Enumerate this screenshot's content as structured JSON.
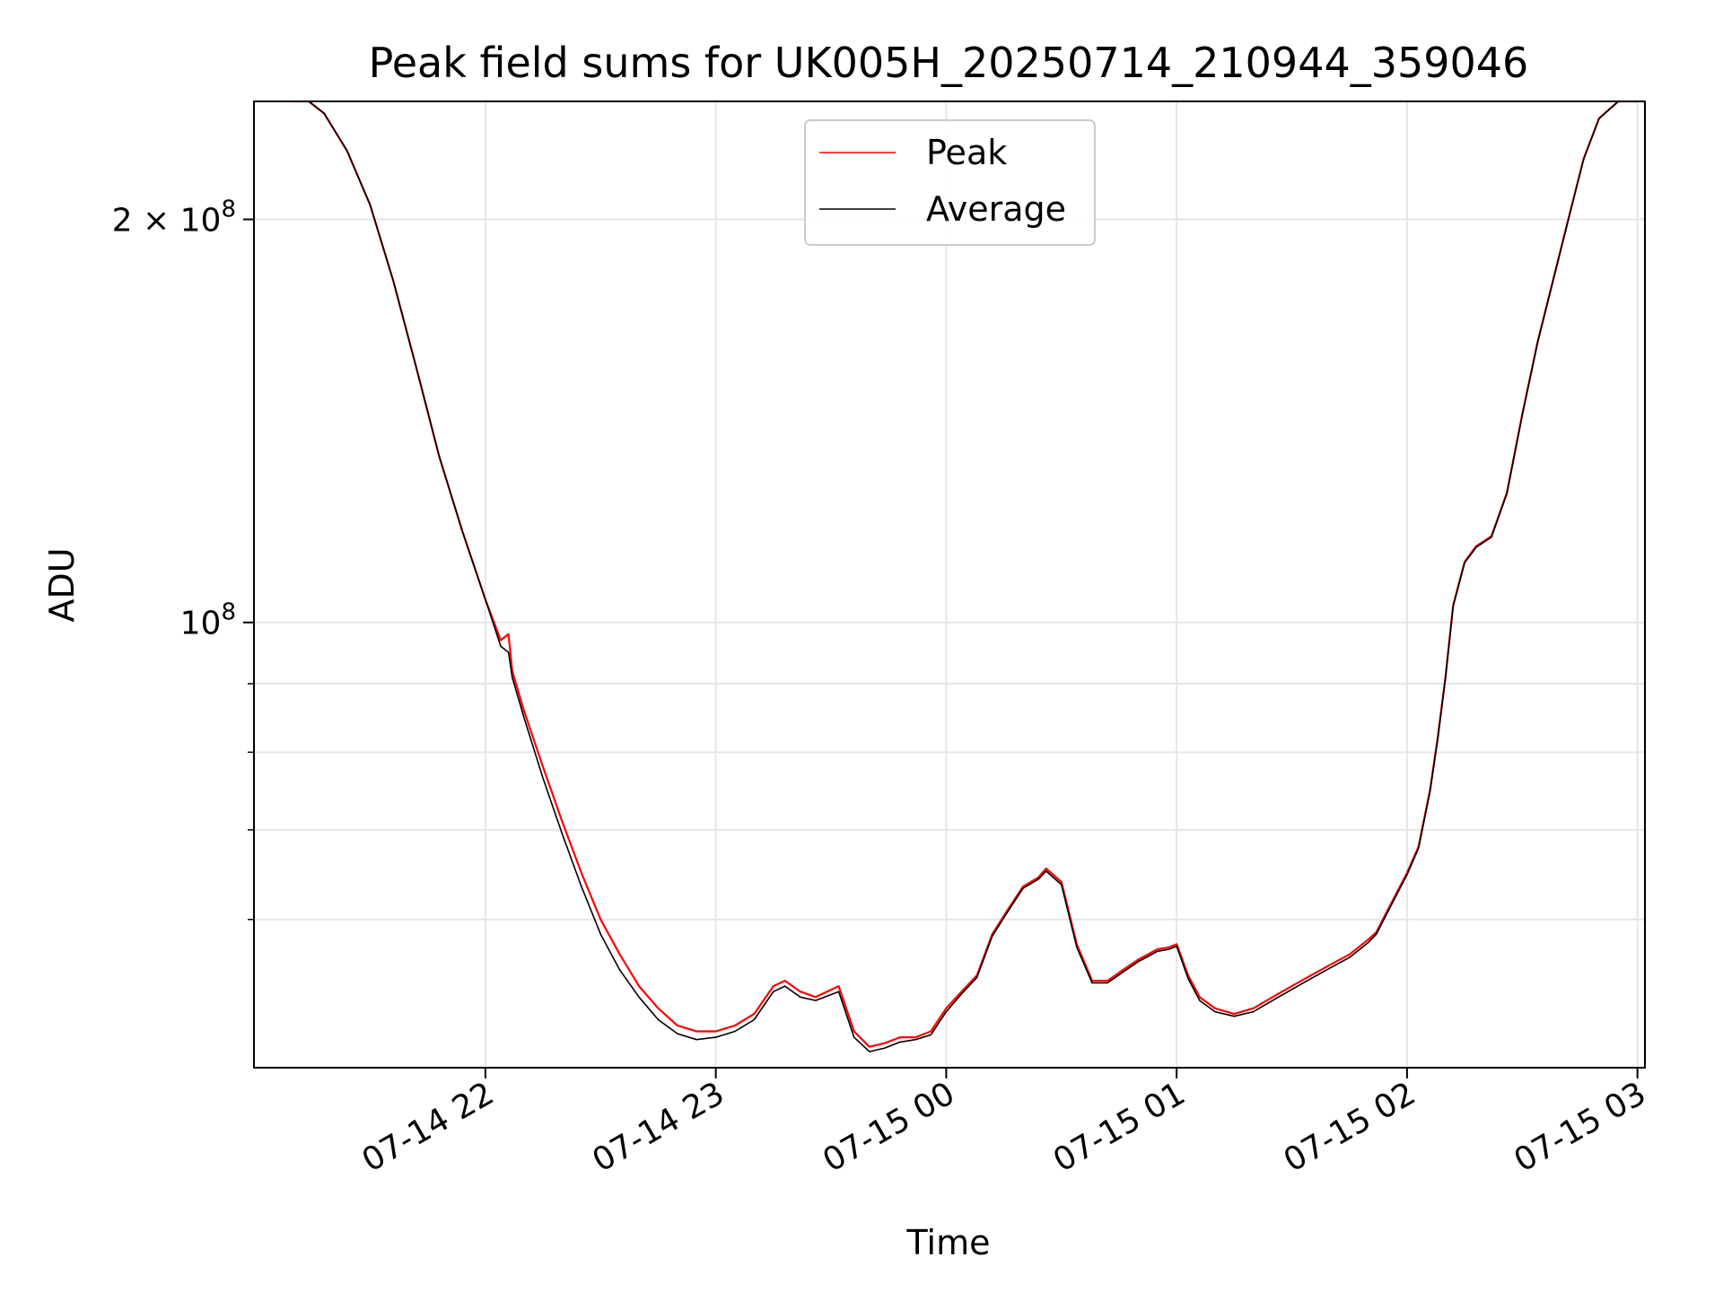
{
  "chart_data": {
    "type": "line",
    "title": "Peak field sums for UK005H_20250714_210944_359046",
    "xlabel": "Time",
    "ylabel": "ADU",
    "y_scale": "log",
    "ylim": [
      46500000,
      245000000
    ],
    "xlim": [
      "2025-07-14 21:09:44",
      "2025-07-15 03:00:00"
    ],
    "grid": true,
    "legend_position": "upper center",
    "x_ticks": [
      {
        "value": "2025-07-14 22:00",
        "label": "07-14 22"
      },
      {
        "value": "2025-07-14 23:00",
        "label": "07-14 23"
      },
      {
        "value": "2025-07-15 00:00",
        "label": "07-15 00"
      },
      {
        "value": "2025-07-15 01:00",
        "label": "07-15 01"
      },
      {
        "value": "2025-07-15 02:00",
        "label": "07-15 02"
      },
      {
        "value": "2025-07-15 03:00",
        "label": "07-15 03"
      }
    ],
    "y_ticks_major": [
      {
        "value": 100000000,
        "base": "10",
        "exp": "8",
        "mantissa": ""
      },
      {
        "value": 200000000,
        "base": "10",
        "exp": "8",
        "mantissa": "2 × "
      }
    ],
    "y_ticks_minor": [
      60000000,
      70000000,
      80000000,
      90000000
    ],
    "series": [
      {
        "name": "Peak",
        "color": "#ff0000",
        "x": [
          "2025-07-14 21:09:44",
          "2025-07-14 21:14",
          "2025-07-14 21:18",
          "2025-07-14 21:24",
          "2025-07-14 21:30",
          "2025-07-14 21:36",
          "2025-07-14 21:42",
          "2025-07-14 21:48",
          "2025-07-14 21:54",
          "2025-07-14 22:00",
          "2025-07-14 22:04",
          "2025-07-14 22:06",
          "2025-07-14 22:07",
          "2025-07-14 22:10",
          "2025-07-14 22:15",
          "2025-07-14 22:20",
          "2025-07-14 22:25",
          "2025-07-14 22:30",
          "2025-07-14 22:35",
          "2025-07-14 22:40",
          "2025-07-14 22:45",
          "2025-07-14 22:50",
          "2025-07-14 22:55",
          "2025-07-14 23:00",
          "2025-07-14 23:05",
          "2025-07-14 23:10",
          "2025-07-14 23:15",
          "2025-07-14 23:18",
          "2025-07-14 23:22",
          "2025-07-14 23:26",
          "2025-07-14 23:32",
          "2025-07-14 23:36",
          "2025-07-14 23:40",
          "2025-07-14 23:44",
          "2025-07-14 23:48",
          "2025-07-14 23:52",
          "2025-07-14 23:56",
          "2025-07-15 00:00",
          "2025-07-15 00:04",
          "2025-07-15 00:08",
          "2025-07-15 00:12",
          "2025-07-15 00:16",
          "2025-07-15 00:20",
          "2025-07-15 00:24",
          "2025-07-15 00:26",
          "2025-07-15 00:30",
          "2025-07-15 00:34",
          "2025-07-15 00:38",
          "2025-07-15 00:42",
          "2025-07-15 00:46",
          "2025-07-15 00:50",
          "2025-07-15 00:55",
          "2025-07-15 00:58",
          "2025-07-15 01:00",
          "2025-07-15 01:03",
          "2025-07-15 01:06",
          "2025-07-15 01:10",
          "2025-07-15 01:15",
          "2025-07-15 01:20",
          "2025-07-15 01:25",
          "2025-07-15 01:30",
          "2025-07-15 01:35",
          "2025-07-15 01:40",
          "2025-07-15 01:45",
          "2025-07-15 01:50",
          "2025-07-15 01:52",
          "2025-07-15 01:55",
          "2025-07-15 02:00",
          "2025-07-15 02:03",
          "2025-07-15 02:06",
          "2025-07-15 02:08",
          "2025-07-15 02:10",
          "2025-07-15 02:12",
          "2025-07-15 02:15",
          "2025-07-15 02:18",
          "2025-07-15 02:22",
          "2025-07-15 02:26",
          "2025-07-15 02:30",
          "2025-07-15 02:34",
          "2025-07-15 02:38",
          "2025-07-15 02:42",
          "2025-07-15 02:46",
          "2025-07-15 02:50",
          "2025-07-15 02:55",
          "2025-07-15 03:00"
        ],
        "y": [
          245000000,
          245000000,
          240000000,
          225000000,
          205000000,
          180000000,
          155000000,
          133000000,
          117000000,
          104000000,
          97000000,
          98000000,
          92000000,
          86000000,
          78000000,
          71000000,
          65000000,
          60000000,
          56500000,
          53500000,
          51500000,
          50000000,
          49500000,
          49500000,
          50000000,
          51000000,
          53500000,
          54000000,
          53000000,
          52500000,
          53500000,
          49500000,
          48200000,
          48500000,
          49000000,
          49000000,
          49500000,
          51500000,
          53000000,
          54500000,
          58500000,
          61000000,
          63500000,
          64500000,
          65500000,
          64000000,
          57500000,
          54000000,
          54000000,
          55000000,
          56000000,
          57000000,
          57200000,
          57500000,
          54500000,
          52500000,
          51500000,
          51000000,
          51500000,
          52500000,
          53500000,
          54500000,
          55500000,
          56500000,
          58000000,
          58700000,
          61000000,
          65000000,
          68000000,
          75000000,
          82000000,
          91000000,
          103000000,
          111000000,
          114000000,
          116000000,
          125000000,
          143000000,
          162000000,
          180000000,
          200000000,
          222000000,
          238000000,
          245000000,
          245000000
        ]
      },
      {
        "name": "Average",
        "color": "#000000",
        "x": [
          "2025-07-14 21:09:44",
          "2025-07-14 21:14",
          "2025-07-14 21:18",
          "2025-07-14 21:24",
          "2025-07-14 21:30",
          "2025-07-14 21:36",
          "2025-07-14 21:42",
          "2025-07-14 21:48",
          "2025-07-14 21:54",
          "2025-07-14 22:00",
          "2025-07-14 22:04",
          "2025-07-14 22:06",
          "2025-07-14 22:07",
          "2025-07-14 22:10",
          "2025-07-14 22:15",
          "2025-07-14 22:20",
          "2025-07-14 22:25",
          "2025-07-14 22:30",
          "2025-07-14 22:35",
          "2025-07-14 22:40",
          "2025-07-14 22:45",
          "2025-07-14 22:50",
          "2025-07-14 22:55",
          "2025-07-14 23:00",
          "2025-07-14 23:05",
          "2025-07-14 23:10",
          "2025-07-14 23:15",
          "2025-07-14 23:18",
          "2025-07-14 23:22",
          "2025-07-14 23:26",
          "2025-07-14 23:32",
          "2025-07-14 23:36",
          "2025-07-14 23:40",
          "2025-07-14 23:44",
          "2025-07-14 23:48",
          "2025-07-14 23:52",
          "2025-07-14 23:56",
          "2025-07-15 00:00",
          "2025-07-15 00:04",
          "2025-07-15 00:08",
          "2025-07-15 00:12",
          "2025-07-15 00:16",
          "2025-07-15 00:20",
          "2025-07-15 00:24",
          "2025-07-15 00:26",
          "2025-07-15 00:30",
          "2025-07-15 00:34",
          "2025-07-15 00:38",
          "2025-07-15 00:42",
          "2025-07-15 00:46",
          "2025-07-15 00:50",
          "2025-07-15 00:55",
          "2025-07-15 00:58",
          "2025-07-15 01:00",
          "2025-07-15 01:03",
          "2025-07-15 01:06",
          "2025-07-15 01:10",
          "2025-07-15 01:15",
          "2025-07-15 01:20",
          "2025-07-15 01:25",
          "2025-07-15 01:30",
          "2025-07-15 01:35",
          "2025-07-15 01:40",
          "2025-07-15 01:45",
          "2025-07-15 01:50",
          "2025-07-15 01:52",
          "2025-07-15 01:55",
          "2025-07-15 02:00",
          "2025-07-15 02:03",
          "2025-07-15 02:06",
          "2025-07-15 02:08",
          "2025-07-15 02:10",
          "2025-07-15 02:12",
          "2025-07-15 02:15",
          "2025-07-15 02:18",
          "2025-07-15 02:22",
          "2025-07-15 02:26",
          "2025-07-15 02:30",
          "2025-07-15 02:34",
          "2025-07-15 02:38",
          "2025-07-15 02:42",
          "2025-07-15 02:46",
          "2025-07-15 02:50",
          "2025-07-15 02:55",
          "2025-07-15 03:00"
        ],
        "y": [
          245000000,
          245000000,
          240000000,
          225000000,
          205000000,
          180000000,
          155000000,
          133000000,
          117000000,
          104000000,
          96000000,
          95000000,
          91000000,
          85000000,
          76500000,
          69500000,
          63500000,
          58500000,
          55000000,
          52500000,
          50500000,
          49300000,
          48800000,
          49000000,
          49500000,
          50500000,
          53000000,
          53500000,
          52500000,
          52200000,
          53000000,
          49000000,
          47800000,
          48100000,
          48600000,
          48800000,
          49200000,
          51200000,
          52800000,
          54300000,
          58300000,
          60800000,
          63300000,
          64300000,
          65200000,
          63700000,
          57200000,
          53800000,
          53800000,
          54800000,
          55800000,
          56800000,
          57000000,
          57300000,
          54200000,
          52200000,
          51200000,
          50800000,
          51200000,
          52200000,
          53200000,
          54200000,
          55200000,
          56200000,
          57700000,
          58500000,
          60800000,
          64800000,
          67800000,
          74800000,
          81800000,
          90800000,
          102800000,
          110800000,
          113800000,
          115800000,
          124800000,
          142800000,
          161800000,
          179800000,
          199800000,
          221800000,
          237800000,
          245000000,
          245000000
        ]
      }
    ]
  }
}
